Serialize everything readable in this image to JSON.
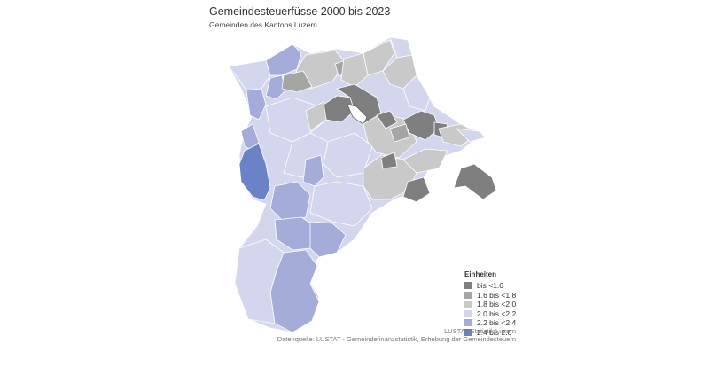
{
  "title": "Gemeindesteuerfüsse 2000 bis 2023",
  "subtitle": "Gemeinden des Kantons Luzern",
  "legend": {
    "title": "Einheiten",
    "items": [
      {
        "label": "bis <1.6",
        "color": "#7f7f7f"
      },
      {
        "label": "1.6 bis <1.8",
        "color": "#a5a5a5"
      },
      {
        "label": "1.8 bis <2.0",
        "color": "#c9c9c9"
      },
      {
        "label": "2.0 bis <2.2",
        "color": "#d3d6ec"
      },
      {
        "label": "2.2 bis <2.4",
        "color": "#a4add9"
      },
      {
        "label": "2.4 bis 2.6",
        "color": "#6c82c6"
      }
    ]
  },
  "credit": "LUSTAT Statistik Luzern",
  "source": "Datenquelle: LUSTAT - Gemeindefinanzstatistik, Erhebung der Gemeindesteuern"
}
